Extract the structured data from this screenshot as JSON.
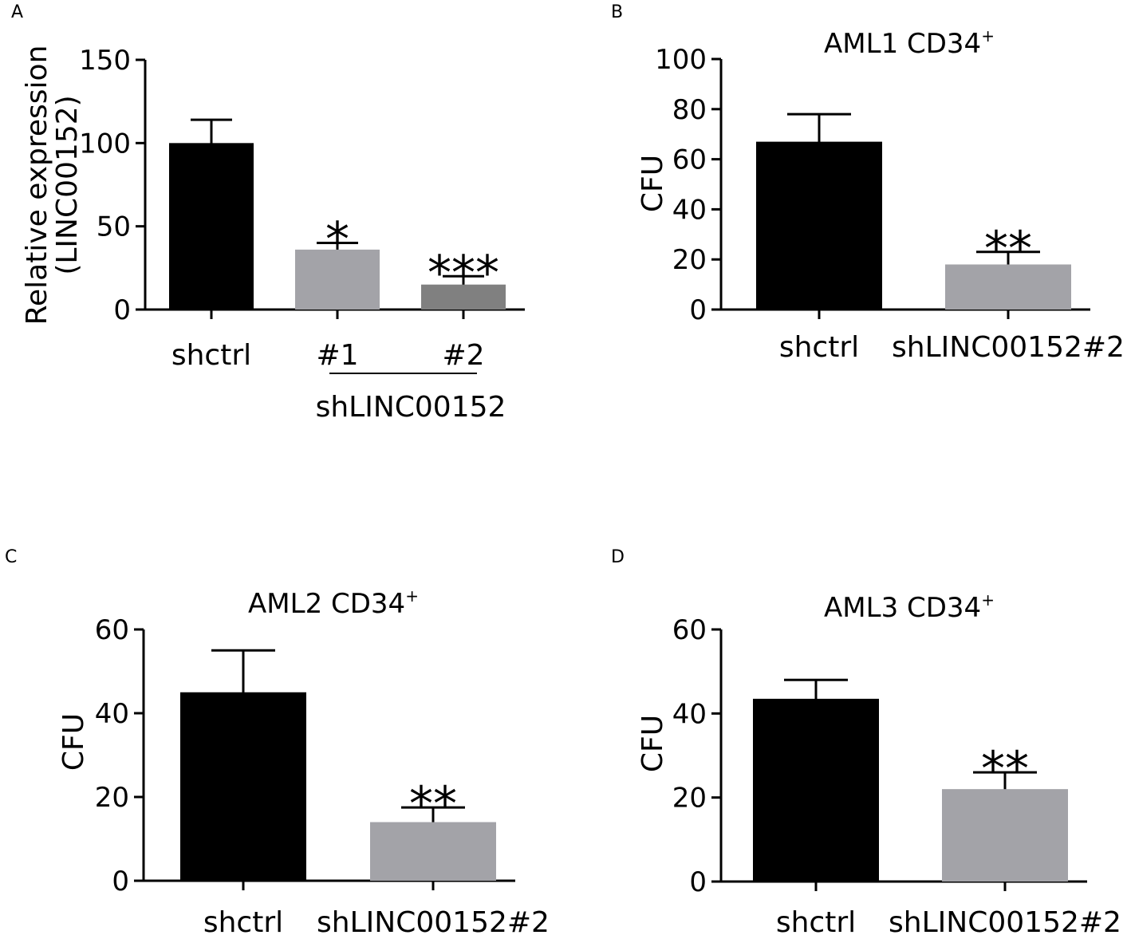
{
  "chart_data": [
    {
      "panel": "A",
      "type": "bar",
      "title": "",
      "ylabel_lines": [
        "Relative expression",
        "(LINC00152)"
      ],
      "ylim": [
        0,
        150
      ],
      "yticks": [
        0,
        50,
        100,
        150
      ],
      "categories": [
        "shctrl",
        "#1",
        "#2"
      ],
      "group_label": "shLINC00152",
      "values": [
        100,
        36,
        15
      ],
      "errors": [
        14,
        4,
        5
      ],
      "colors": [
        "#000000",
        "#a3a3a8",
        "#808080"
      ],
      "significance": [
        "",
        "*",
        "***"
      ]
    },
    {
      "panel": "B",
      "type": "bar",
      "title": "AML1 CD34",
      "title_sup": "+",
      "ylabel": "CFU",
      "ylim": [
        0,
        100
      ],
      "yticks": [
        0,
        20,
        40,
        60,
        80,
        100
      ],
      "categories": [
        "shctrl",
        "shLINC00152#2"
      ],
      "values": [
        67,
        18
      ],
      "errors": [
        11,
        5
      ],
      "colors": [
        "#000000",
        "#a3a3a8"
      ],
      "significance": [
        "",
        "**"
      ]
    },
    {
      "panel": "C",
      "type": "bar",
      "title": "AML2 CD34",
      "title_sup": "+",
      "ylabel": "CFU",
      "ylim": [
        0,
        60
      ],
      "yticks": [
        0,
        20,
        40,
        60
      ],
      "categories": [
        "shctrl",
        "shLINC00152#2"
      ],
      "values": [
        45,
        14
      ],
      "errors": [
        10,
        3.5
      ],
      "colors": [
        "#000000",
        "#a3a3a8"
      ],
      "significance": [
        "",
        "**"
      ]
    },
    {
      "panel": "D",
      "type": "bar",
      "title": "AML3 CD34",
      "title_sup": "+",
      "ylabel": "CFU",
      "ylim": [
        0,
        60
      ],
      "yticks": [
        0,
        20,
        40,
        60
      ],
      "categories": [
        "shctrl",
        "shLINC00152#2"
      ],
      "values": [
        43.5,
        22
      ],
      "errors": [
        4.5,
        4
      ],
      "colors": [
        "#000000",
        "#a3a3a8"
      ],
      "significance": [
        "",
        "**"
      ]
    }
  ]
}
